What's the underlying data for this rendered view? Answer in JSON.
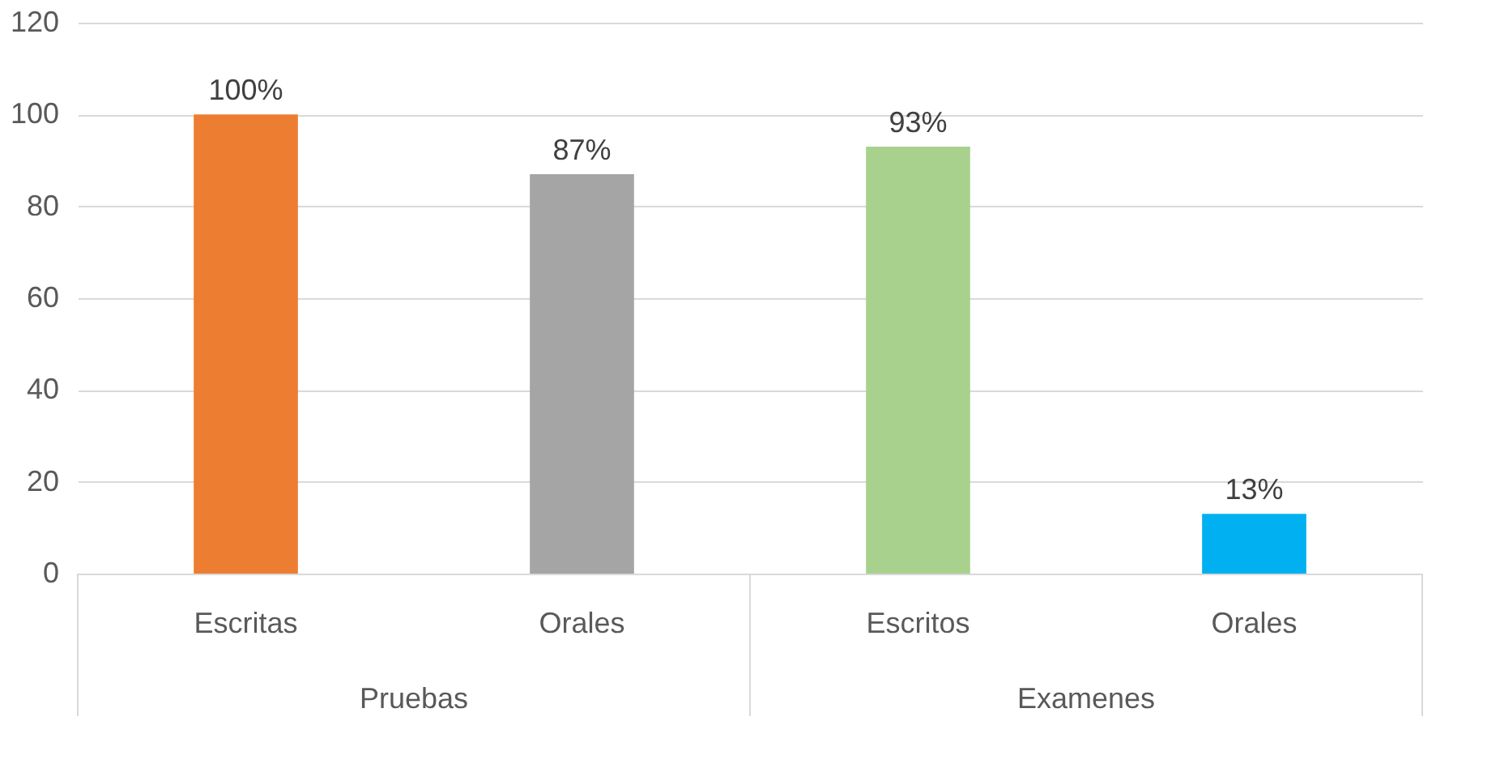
{
  "chart_data": {
    "type": "bar",
    "categories": [
      "Escritas",
      "Orales",
      "Escritos",
      "Orales"
    ],
    "values": [
      100,
      87,
      93,
      13
    ],
    "colors": [
      "#ed7d31",
      "#a5a5a5",
      "#a9d18e",
      "#00b0f0"
    ],
    "value_labels": [
      "100%",
      "87%",
      "93%",
      "13%"
    ],
    "annotations": [
      "Pruebas",
      "Examenes"
    ],
    "ylim": [
      0,
      120
    ],
    "yticks": [
      0,
      20,
      40,
      60,
      80,
      100,
      120
    ],
    "grid": "y"
  }
}
